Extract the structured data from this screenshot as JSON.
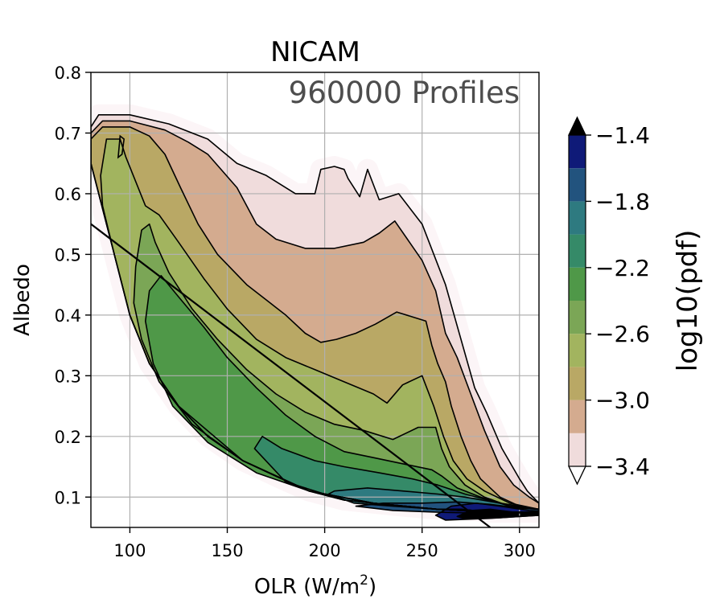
{
  "chart_data": {
    "type": "contour",
    "title": "NICAM",
    "annotation": "960000 Profiles",
    "xlabel": "OLR (W/m",
    "xlabel_sup": "2",
    "xlabel_end": ")",
    "ylabel": "Albedo",
    "xlim": [
      80,
      310
    ],
    "ylim": [
      0.05,
      0.8
    ],
    "x_ticks": [
      100,
      150,
      200,
      250,
      300
    ],
    "y_ticks": [
      0.1,
      0.2,
      0.3,
      0.4,
      0.5,
      0.6,
      0.7,
      0.8
    ],
    "grid": true,
    "colorbar": {
      "label": "log10(pdf)",
      "levels": [
        -3.4,
        -3.2,
        -3.0,
        -2.8,
        -2.6,
        -2.4,
        -2.2,
        -2.0,
        -1.8,
        -1.6,
        -1.4
      ],
      "tick_labels": [
        "−1.4",
        "−1.8",
        "−2.2",
        "−2.6",
        "−3.0",
        "−3.4"
      ],
      "tick_values": [
        -1.4,
        -1.8,
        -2.2,
        -2.6,
        -3.0,
        -3.4
      ],
      "colors": [
        "#f0dcdc",
        "#d4ab8f",
        "#b9a865",
        "#a2b45f",
        "#7ba656",
        "#4f9848",
        "#358a68",
        "#2e7a80",
        "#22537e",
        "#0f1a78"
      ],
      "extend": "both",
      "over_color": "#000000",
      "under_color": "#ffffff"
    },
    "reference_line": {
      "x": [
        80,
        285
      ],
      "y": [
        0.55,
        0.05
      ]
    },
    "contour_regions": [
      {
        "level": -3.4,
        "points": [
          [
            80,
            0.71
          ],
          [
            84,
            0.73
          ],
          [
            100,
            0.73
          ],
          [
            120,
            0.715
          ],
          [
            140,
            0.69
          ],
          [
            155,
            0.65
          ],
          [
            170,
            0.63
          ],
          [
            185,
            0.6
          ],
          [
            195,
            0.6
          ],
          [
            198,
            0.64
          ],
          [
            205,
            0.645
          ],
          [
            210,
            0.64
          ],
          [
            212,
            0.625
          ],
          [
            218,
            0.595
          ],
          [
            222,
            0.64
          ],
          [
            228,
            0.59
          ],
          [
            238,
            0.6
          ],
          [
            250,
            0.55
          ],
          [
            262,
            0.45
          ],
          [
            277,
            0.28
          ],
          [
            283,
            0.24
          ],
          [
            291,
            0.18
          ],
          [
            300,
            0.13
          ],
          [
            304,
            0.11
          ],
          [
            307,
            0.1
          ],
          [
            310,
            0.09
          ],
          [
            310,
            0.075
          ],
          [
            300,
            0.075
          ],
          [
            285,
            0.075
          ],
          [
            270,
            0.08
          ],
          [
            258,
            0.08
          ],
          [
            240,
            0.085
          ],
          [
            225,
            0.09
          ],
          [
            210,
            0.095
          ],
          [
            192,
            0.11
          ],
          [
            178,
            0.13
          ],
          [
            158,
            0.16
          ],
          [
            140,
            0.2
          ],
          [
            125,
            0.25
          ],
          [
            110,
            0.32
          ],
          [
            100,
            0.4
          ],
          [
            92,
            0.5
          ],
          [
            84,
            0.6
          ],
          [
            80,
            0.65
          ]
        ]
      },
      {
        "level": -3.2,
        "points": [
          [
            80,
            0.7
          ],
          [
            86,
            0.72
          ],
          [
            100,
            0.72
          ],
          [
            118,
            0.705
          ],
          [
            130,
            0.685
          ],
          [
            140,
            0.665
          ],
          [
            155,
            0.61
          ],
          [
            165,
            0.55
          ],
          [
            175,
            0.525
          ],
          [
            190,
            0.51
          ],
          [
            205,
            0.51
          ],
          [
            220,
            0.52
          ],
          [
            228,
            0.535
          ],
          [
            236,
            0.555
          ],
          [
            250,
            0.49
          ],
          [
            257,
            0.44
          ],
          [
            262,
            0.37
          ],
          [
            268,
            0.33
          ],
          [
            275,
            0.27
          ],
          [
            282,
            0.21
          ],
          [
            290,
            0.15
          ],
          [
            297,
            0.12
          ],
          [
            305,
            0.1
          ],
          [
            310,
            0.09
          ],
          [
            310,
            0.075
          ],
          [
            300,
            0.075
          ],
          [
            285,
            0.075
          ],
          [
            270,
            0.08
          ],
          [
            258,
            0.08
          ],
          [
            240,
            0.085
          ],
          [
            225,
            0.09
          ],
          [
            210,
            0.095
          ],
          [
            192,
            0.11
          ],
          [
            178,
            0.13
          ],
          [
            158,
            0.16
          ],
          [
            140,
            0.2
          ],
          [
            125,
            0.25
          ],
          [
            110,
            0.32
          ],
          [
            100,
            0.4
          ],
          [
            92,
            0.5
          ],
          [
            84,
            0.6
          ],
          [
            80,
            0.65
          ]
        ]
      },
      {
        "level": -3.0,
        "points": [
          [
            80,
            0.69
          ],
          [
            86,
            0.71
          ],
          [
            100,
            0.71
          ],
          [
            110,
            0.695
          ],
          [
            118,
            0.665
          ],
          [
            126,
            0.61
          ],
          [
            135,
            0.55
          ],
          [
            145,
            0.5
          ],
          [
            160,
            0.45
          ],
          [
            172,
            0.42
          ],
          [
            180,
            0.4
          ],
          [
            190,
            0.37
          ],
          [
            198,
            0.355
          ],
          [
            206,
            0.36
          ],
          [
            216,
            0.37
          ],
          [
            226,
            0.385
          ],
          [
            237,
            0.405
          ],
          [
            252,
            0.39
          ],
          [
            255,
            0.35
          ],
          [
            258,
            0.32
          ],
          [
            262,
            0.29
          ],
          [
            265,
            0.25
          ],
          [
            270,
            0.2
          ],
          [
            275,
            0.16
          ],
          [
            280,
            0.13
          ],
          [
            290,
            0.1
          ],
          [
            300,
            0.085
          ],
          [
            310,
            0.08
          ],
          [
            310,
            0.075
          ],
          [
            300,
            0.075
          ],
          [
            285,
            0.075
          ],
          [
            270,
            0.08
          ],
          [
            258,
            0.08
          ],
          [
            240,
            0.085
          ],
          [
            225,
            0.09
          ],
          [
            210,
            0.095
          ],
          [
            192,
            0.11
          ],
          [
            178,
            0.13
          ],
          [
            158,
            0.16
          ],
          [
            140,
            0.2
          ],
          [
            125,
            0.25
          ],
          [
            110,
            0.32
          ],
          [
            100,
            0.4
          ],
          [
            92,
            0.5
          ],
          [
            84,
            0.6
          ],
          [
            80,
            0.65
          ]
        ]
      },
      {
        "level": -2.8,
        "points": [
          [
            85,
            0.63
          ],
          [
            88,
            0.69
          ],
          [
            95,
            0.69
          ],
          [
            98,
            0.66
          ],
          [
            103,
            0.62
          ],
          [
            108,
            0.58
          ],
          [
            115,
            0.565
          ],
          [
            125,
            0.52
          ],
          [
            138,
            0.46
          ],
          [
            150,
            0.41
          ],
          [
            165,
            0.36
          ],
          [
            180,
            0.33
          ],
          [
            195,
            0.31
          ],
          [
            210,
            0.29
          ],
          [
            225,
            0.27
          ],
          [
            232,
            0.255
          ],
          [
            240,
            0.285
          ],
          [
            250,
            0.3
          ],
          [
            256,
            0.25
          ],
          [
            261,
            0.2
          ],
          [
            266,
            0.16
          ],
          [
            273,
            0.13
          ],
          [
            282,
            0.11
          ],
          [
            295,
            0.09
          ],
          [
            310,
            0.08
          ],
          [
            310,
            0.075
          ],
          [
            285,
            0.075
          ],
          [
            258,
            0.08
          ],
          [
            225,
            0.09
          ],
          [
            192,
            0.11
          ],
          [
            158,
            0.16
          ],
          [
            125,
            0.25
          ],
          [
            110,
            0.32
          ],
          [
            100,
            0.4
          ],
          [
            92,
            0.5
          ],
          [
            86,
            0.58
          ]
        ]
      },
      {
        "level": -2.6,
        "points": [
          [
            102,
            0.42
          ],
          [
            103,
            0.48
          ],
          [
            106,
            0.54
          ],
          [
            110,
            0.55
          ],
          [
            113,
            0.52
          ],
          [
            120,
            0.47
          ],
          [
            132,
            0.41
          ],
          [
            145,
            0.36
          ],
          [
            160,
            0.31
          ],
          [
            175,
            0.27
          ],
          [
            190,
            0.24
          ],
          [
            205,
            0.22
          ],
          [
            220,
            0.21
          ],
          [
            235,
            0.195
          ],
          [
            248,
            0.215
          ],
          [
            257,
            0.215
          ],
          [
            260,
            0.18
          ],
          [
            264,
            0.15
          ],
          [
            272,
            0.12
          ],
          [
            282,
            0.1
          ],
          [
            295,
            0.085
          ],
          [
            310,
            0.08
          ],
          [
            310,
            0.075
          ],
          [
            285,
            0.075
          ],
          [
            258,
            0.08
          ],
          [
            225,
            0.09
          ],
          [
            192,
            0.11
          ],
          [
            158,
            0.16
          ],
          [
            132,
            0.22
          ],
          [
            115,
            0.29
          ],
          [
            106,
            0.36
          ]
        ]
      },
      {
        "level": -2.4,
        "points": [
          [
            108,
            0.39
          ],
          [
            110,
            0.44
          ],
          [
            116,
            0.465
          ],
          [
            125,
            0.43
          ],
          [
            138,
            0.38
          ],
          [
            150,
            0.33
          ],
          [
            165,
            0.28
          ],
          [
            180,
            0.235
          ],
          [
            195,
            0.2
          ],
          [
            210,
            0.175
          ],
          [
            225,
            0.165
          ],
          [
            240,
            0.155
          ],
          [
            255,
            0.145
          ],
          [
            260,
            0.135
          ],
          [
            268,
            0.115
          ],
          [
            280,
            0.1
          ],
          [
            295,
            0.085
          ],
          [
            310,
            0.08
          ],
          [
            310,
            0.075
          ],
          [
            285,
            0.075
          ],
          [
            258,
            0.08
          ],
          [
            225,
            0.09
          ],
          [
            192,
            0.11
          ],
          [
            165,
            0.14
          ],
          [
            140,
            0.19
          ],
          [
            122,
            0.25
          ],
          [
            112,
            0.32
          ]
        ]
      },
      {
        "level": -2.2,
        "points": [
          [
            164,
            0.18
          ],
          [
            168,
            0.2
          ],
          [
            178,
            0.18
          ],
          [
            195,
            0.16
          ],
          [
            210,
            0.15
          ],
          [
            228,
            0.14
          ],
          [
            245,
            0.13
          ],
          [
            258,
            0.12
          ],
          [
            272,
            0.105
          ],
          [
            290,
            0.09
          ],
          [
            310,
            0.08
          ],
          [
            310,
            0.075
          ],
          [
            285,
            0.075
          ],
          [
            258,
            0.08
          ],
          [
            225,
            0.09
          ],
          [
            200,
            0.105
          ],
          [
            180,
            0.125
          ]
        ]
      },
      {
        "level": -2.0,
        "points": [
          [
            202,
            0.105
          ],
          [
            205,
            0.11
          ],
          [
            222,
            0.115
          ],
          [
            240,
            0.11
          ],
          [
            258,
            0.105
          ],
          [
            272,
            0.1
          ],
          [
            290,
            0.09
          ],
          [
            310,
            0.08
          ],
          [
            310,
            0.075
          ],
          [
            285,
            0.075
          ],
          [
            258,
            0.08
          ],
          [
            235,
            0.085
          ],
          [
            215,
            0.09
          ]
        ]
      },
      {
        "level": -1.8,
        "points": [
          [
            216,
            0.085
          ],
          [
            230,
            0.09
          ],
          [
            250,
            0.09
          ],
          [
            268,
            0.092
          ],
          [
            285,
            0.088
          ],
          [
            300,
            0.082
          ],
          [
            310,
            0.08
          ],
          [
            310,
            0.075
          ],
          [
            285,
            0.073
          ],
          [
            258,
            0.075
          ],
          [
            235,
            0.078
          ]
        ]
      },
      {
        "level": -1.6,
        "points": [
          [
            257,
            0.07
          ],
          [
            265,
            0.085
          ],
          [
            278,
            0.09
          ],
          [
            290,
            0.085
          ],
          [
            305,
            0.078
          ],
          [
            310,
            0.077
          ],
          [
            310,
            0.07
          ],
          [
            285,
            0.065
          ],
          [
            262,
            0.062
          ]
        ]
      },
      {
        "level": -1.4,
        "points": [
          [
            268,
            0.068
          ],
          [
            275,
            0.078
          ],
          [
            285,
            0.08
          ],
          [
            300,
            0.074
          ],
          [
            310,
            0.074
          ],
          [
            310,
            0.07
          ],
          [
            290,
            0.066
          ],
          [
            272,
            0.064
          ]
        ]
      }
    ],
    "small_contour": [
      [
        94,
        0.66
      ],
      [
        95,
        0.695
      ],
      [
        97,
        0.69
      ],
      [
        96,
        0.665
      ]
    ]
  }
}
